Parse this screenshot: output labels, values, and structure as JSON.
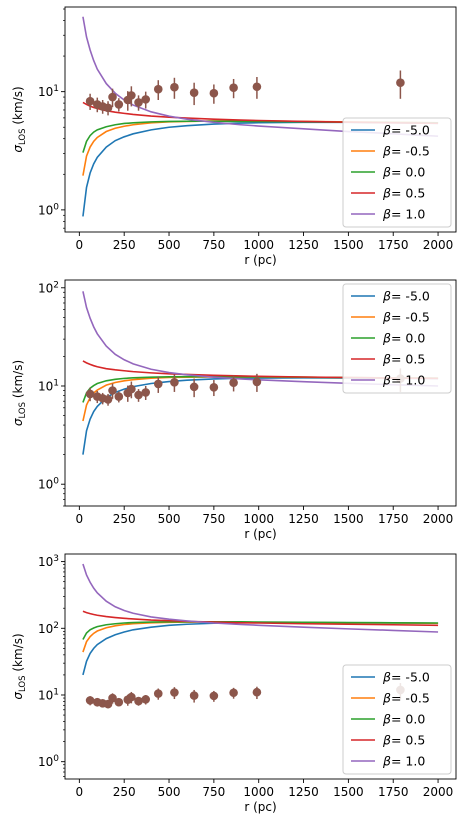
{
  "chart_data": [
    {
      "type": "line",
      "panel": "top",
      "xlabel": "r (pc)",
      "ylabel": "σ_LOS (km/s)",
      "ylabel_main": "σ",
      "ylabel_sub": "LOS",
      "ylabel_unit": " (km/s)",
      "xlim": [
        -80,
        2100
      ],
      "ylim": [
        0.65,
        52
      ],
      "yscale": "log",
      "x_ticks": [
        0,
        250,
        500,
        750,
        1000,
        1250,
        1500,
        1750,
        2000
      ],
      "y_ticks": [
        1,
        10
      ],
      "y_tick_labels": [
        "10^0",
        "10^1"
      ],
      "legend_position": "lower right",
      "series": [
        {
          "name": "β = -5.0",
          "label_prefix": "β",
          "label_value": "= -5.0",
          "color": "#1f77b4",
          "x": [
            20,
            40,
            60,
            80,
            100,
            150,
            200,
            250,
            300,
            400,
            500,
            600,
            750,
            900,
            1000,
            1250,
            1500,
            1750,
            2000
          ],
          "y": [
            0.88,
            1.55,
            2.05,
            2.45,
            2.78,
            3.4,
            3.85,
            4.15,
            4.4,
            4.75,
            5.0,
            5.15,
            5.32,
            5.42,
            5.46,
            5.5,
            5.5,
            5.45,
            5.4
          ]
        },
        {
          "name": "β = -0.5",
          "label_prefix": "β",
          "label_value": "= -0.5",
          "color": "#ff7f0e",
          "x": [
            20,
            40,
            60,
            80,
            100,
            150,
            200,
            250,
            300,
            400,
            500,
            600,
            750,
            900,
            1000,
            1250,
            1500,
            1750,
            2000
          ],
          "y": [
            1.95,
            2.85,
            3.4,
            3.8,
            4.1,
            4.6,
            4.9,
            5.1,
            5.25,
            5.45,
            5.55,
            5.6,
            5.65,
            5.65,
            5.65,
            5.6,
            5.55,
            5.5,
            5.45
          ]
        },
        {
          "name": "β = 0.0",
          "label_prefix": "β",
          "label_value": "= 0.0",
          "color": "#2ca02c",
          "x": [
            20,
            40,
            60,
            80,
            100,
            150,
            200,
            250,
            300,
            400,
            500,
            600,
            750,
            900,
            1000,
            1250,
            1500,
            1750,
            2000
          ],
          "y": [
            3.05,
            3.8,
            4.25,
            4.55,
            4.75,
            5.05,
            5.25,
            5.38,
            5.45,
            5.55,
            5.6,
            5.62,
            5.62,
            5.6,
            5.6,
            5.55,
            5.52,
            5.48,
            5.45
          ]
        },
        {
          "name": "β = 0.5",
          "label_prefix": "β",
          "label_value": "= 0.5",
          "color": "#d62728",
          "x": [
            20,
            40,
            60,
            80,
            100,
            150,
            200,
            250,
            300,
            400,
            500,
            600,
            750,
            900,
            1000,
            1250,
            1500,
            1750,
            2000
          ],
          "y": [
            8.1,
            7.8,
            7.55,
            7.35,
            7.2,
            6.9,
            6.7,
            6.55,
            6.42,
            6.22,
            6.08,
            5.98,
            5.85,
            5.75,
            5.7,
            5.6,
            5.52,
            5.45,
            5.4
          ]
        },
        {
          "name": "β = 1.0",
          "label_prefix": "β",
          "label_value": "= 1.0",
          "color": "#9467bd",
          "x": [
            20,
            40,
            60,
            80,
            100,
            150,
            200,
            250,
            300,
            400,
            500,
            600,
            750,
            900,
            1000,
            1250,
            1500,
            1750,
            2000
          ],
          "y": [
            43,
            29,
            22.5,
            18.3,
            15.5,
            11.7,
            9.7,
            8.5,
            7.7,
            6.75,
            6.2,
            5.85,
            5.5,
            5.25,
            5.12,
            4.85,
            4.6,
            4.4,
            4.2
          ]
        }
      ],
      "observations": {
        "color": "#8c564b",
        "x": [
          60,
          100,
          130,
          160,
          185,
          220,
          270,
          290,
          330,
          370,
          440,
          530,
          640,
          750,
          860,
          990,
          1790
        ],
        "y": [
          8.3,
          7.8,
          7.5,
          7.3,
          9.0,
          7.8,
          8.5,
          9.3,
          8.1,
          8.6,
          10.5,
          10.9,
          9.8,
          9.7,
          10.8,
          11.0,
          11.9
        ],
        "yerr": [
          1.3,
          1.1,
          1.0,
          1.0,
          1.6,
          1.0,
          1.6,
          1.8,
          1.2,
          1.4,
          2.0,
          2.2,
          2.1,
          1.8,
          2.0,
          2.3,
          3.2
        ]
      }
    },
    {
      "type": "line",
      "panel": "middle",
      "xlabel": "r (pc)",
      "ylabel": "σ_LOS (km/s)",
      "ylabel_main": "σ",
      "ylabel_sub": "LOS",
      "ylabel_unit": " (km/s)",
      "xlim": [
        -80,
        2100
      ],
      "ylim": [
        0.6,
        120
      ],
      "yscale": "log",
      "x_ticks": [
        0,
        250,
        500,
        750,
        1000,
        1250,
        1500,
        1750,
        2000
      ],
      "y_ticks": [
        1,
        10,
        100
      ],
      "y_tick_labels": [
        "10^0",
        "10^1",
        "10^2"
      ],
      "legend_position": "upper right",
      "series": [
        {
          "name": "β = -5.0",
          "label_prefix": "β",
          "label_value": "= -5.0",
          "color": "#1f77b4",
          "x": [
            20,
            40,
            60,
            80,
            100,
            150,
            200,
            250,
            300,
            400,
            500,
            600,
            750,
            900,
            1000,
            1250,
            1500,
            1750,
            2000
          ],
          "y": [
            2.0,
            3.5,
            4.6,
            5.5,
            6.2,
            7.6,
            8.6,
            9.3,
            9.85,
            10.6,
            11.1,
            11.45,
            11.8,
            12.0,
            12.05,
            12.1,
            12.05,
            12.0,
            11.9
          ]
        },
        {
          "name": "β = -0.5",
          "label_prefix": "β",
          "label_value": "= -0.5",
          "color": "#ff7f0e",
          "x": [
            20,
            40,
            60,
            80,
            100,
            150,
            200,
            250,
            300,
            400,
            500,
            600,
            750,
            900,
            1000,
            1250,
            1500,
            1750,
            2000
          ],
          "y": [
            4.4,
            6.4,
            7.6,
            8.5,
            9.1,
            10.2,
            10.85,
            11.3,
            11.6,
            12.0,
            12.2,
            12.3,
            12.35,
            12.35,
            12.35,
            12.3,
            12.2,
            12.1,
            12.0
          ]
        },
        {
          "name": "β = 0.0",
          "label_prefix": "β",
          "label_value": "= 0.0",
          "color": "#2ca02c",
          "x": [
            20,
            40,
            60,
            80,
            100,
            150,
            200,
            250,
            300,
            400,
            500,
            600,
            750,
            900,
            1000,
            1250,
            1500,
            1750,
            2000
          ],
          "y": [
            6.8,
            8.5,
            9.5,
            10.1,
            10.6,
            11.3,
            11.7,
            11.95,
            12.1,
            12.3,
            12.4,
            12.45,
            12.45,
            12.4,
            12.4,
            12.3,
            12.2,
            12.1,
            12.0
          ]
        },
        {
          "name": "β = 0.5",
          "label_prefix": "β",
          "label_value": "= 0.5",
          "color": "#d62728",
          "x": [
            20,
            40,
            60,
            80,
            100,
            150,
            200,
            250,
            300,
            400,
            500,
            600,
            750,
            900,
            1000,
            1250,
            1500,
            1750,
            2000
          ],
          "y": [
            18.0,
            17.2,
            16.6,
            16.1,
            15.7,
            15.0,
            14.6,
            14.3,
            14.0,
            13.6,
            13.3,
            13.1,
            12.85,
            12.65,
            12.55,
            12.35,
            12.2,
            12.05,
            11.95
          ]
        },
        {
          "name": "β = 1.0",
          "label_prefix": "β",
          "label_value": "= 1.0",
          "color": "#9467bd",
          "x": [
            20,
            40,
            60,
            80,
            100,
            150,
            200,
            250,
            300,
            400,
            500,
            600,
            750,
            900,
            1000,
            1250,
            1500,
            1750,
            2000
          ],
          "y": [
            92,
            63,
            49,
            40,
            34,
            25.5,
            21,
            18.5,
            16.8,
            14.8,
            13.7,
            13.0,
            12.3,
            11.8,
            11.55,
            11.05,
            10.65,
            10.3,
            10.0
          ]
        }
      ],
      "observations": {
        "color": "#8c564b",
        "x": [
          60,
          100,
          130,
          160,
          185,
          220,
          270,
          290,
          330,
          370,
          440,
          530,
          640,
          750,
          860,
          990,
          1790
        ],
        "y": [
          8.3,
          7.8,
          7.5,
          7.3,
          9.0,
          7.8,
          8.5,
          9.3,
          8.1,
          8.6,
          10.5,
          10.9,
          9.8,
          9.7,
          10.8,
          11.0,
          11.9
        ],
        "yerr": [
          1.3,
          1.1,
          1.0,
          1.0,
          1.6,
          1.0,
          1.6,
          1.8,
          1.2,
          1.4,
          2.0,
          2.2,
          2.1,
          1.8,
          2.0,
          2.3,
          3.2
        ]
      }
    },
    {
      "type": "line",
      "panel": "bottom",
      "xlabel": "r (pc)",
      "ylabel": "σ_LOS (km/s)",
      "ylabel_main": "σ",
      "ylabel_sub": "LOS",
      "ylabel_unit": " (km/s)",
      "xlim": [
        -80,
        2100
      ],
      "ylim": [
        0.55,
        1300
      ],
      "yscale": "log",
      "x_ticks": [
        0,
        250,
        500,
        750,
        1000,
        1250,
        1500,
        1750,
        2000
      ],
      "y_ticks": [
        1,
        10,
        100,
        1000
      ],
      "y_tick_labels": [
        "10^0",
        "10^1",
        "10^2",
        "10^3"
      ],
      "legend_position": "lower right",
      "series": [
        {
          "name": "β = -5.0",
          "label_prefix": "β",
          "label_value": "= -5.0",
          "color": "#1f77b4",
          "x": [
            20,
            40,
            60,
            80,
            100,
            150,
            200,
            250,
            300,
            400,
            500,
            600,
            750,
            900,
            1000,
            1250,
            1500,
            1750,
            2000
          ],
          "y": [
            20,
            32,
            42,
            50,
            57,
            70,
            80,
            88,
            95,
            104,
            111,
            115,
            119,
            121,
            122,
            122,
            121,
            120,
            119
          ]
        },
        {
          "name": "β = -0.5",
          "label_prefix": "β",
          "label_value": "= -0.5",
          "color": "#ff7f0e",
          "x": [
            20,
            40,
            60,
            80,
            100,
            150,
            200,
            250,
            300,
            400,
            500,
            600,
            750,
            900,
            1000,
            1250,
            1500,
            1750,
            2000
          ],
          "y": [
            44,
            63,
            75,
            84,
            91,
            102,
            109,
            114,
            117,
            121,
            123,
            124,
            124,
            124,
            123,
            122,
            121,
            120,
            119
          ]
        },
        {
          "name": "β = 0.0",
          "label_prefix": "β",
          "label_value": "= 0.0",
          "color": "#2ca02c",
          "x": [
            20,
            40,
            60,
            80,
            100,
            150,
            200,
            250,
            300,
            400,
            500,
            600,
            750,
            900,
            1000,
            1250,
            1500,
            1750,
            2000
          ],
          "y": [
            68,
            85,
            95,
            101,
            106,
            113,
            117,
            120,
            122,
            124,
            125,
            125,
            125,
            125,
            124,
            123,
            122,
            121,
            120
          ]
        },
        {
          "name": "β = 0.5",
          "label_prefix": "β",
          "label_value": "= 0.5",
          "color": "#d62728",
          "x": [
            20,
            40,
            60,
            80,
            100,
            150,
            200,
            250,
            300,
            400,
            500,
            600,
            750,
            900,
            1000,
            1250,
            1500,
            1750,
            2000
          ],
          "y": [
            180,
            172,
            166,
            161,
            157,
            150,
            145,
            141,
            138,
            133,
            130,
            127,
            124,
            121,
            120,
            117,
            115,
            113,
            111
          ]
        },
        {
          "name": "β = 1.0",
          "label_prefix": "β",
          "label_value": "= 1.0",
          "color": "#9467bd",
          "x": [
            20,
            40,
            60,
            80,
            100,
            150,
            200,
            250,
            300,
            400,
            500,
            600,
            750,
            900,
            1000,
            1250,
            1500,
            1750,
            2000
          ],
          "y": [
            920,
            630,
            490,
            400,
            340,
            255,
            210,
            185,
            168,
            148,
            137,
            129,
            120,
            114,
            111,
            104,
            98,
            93,
            88
          ]
        }
      ],
      "observations": {
        "color": "#8c564b",
        "x": [
          60,
          100,
          130,
          160,
          185,
          220,
          270,
          290,
          330,
          370,
          440,
          530,
          640,
          750,
          860,
          990,
          1790
        ],
        "y": [
          8.3,
          7.8,
          7.5,
          7.3,
          9.0,
          7.8,
          8.5,
          9.3,
          8.1,
          8.6,
          10.5,
          10.9,
          9.8,
          9.7,
          10.8,
          11.0,
          11.9
        ],
        "yerr": [
          1.3,
          1.1,
          1.0,
          1.0,
          1.6,
          1.0,
          1.6,
          1.8,
          1.2,
          1.4,
          2.0,
          2.2,
          2.1,
          1.8,
          2.0,
          2.3,
          3.2
        ]
      }
    }
  ]
}
